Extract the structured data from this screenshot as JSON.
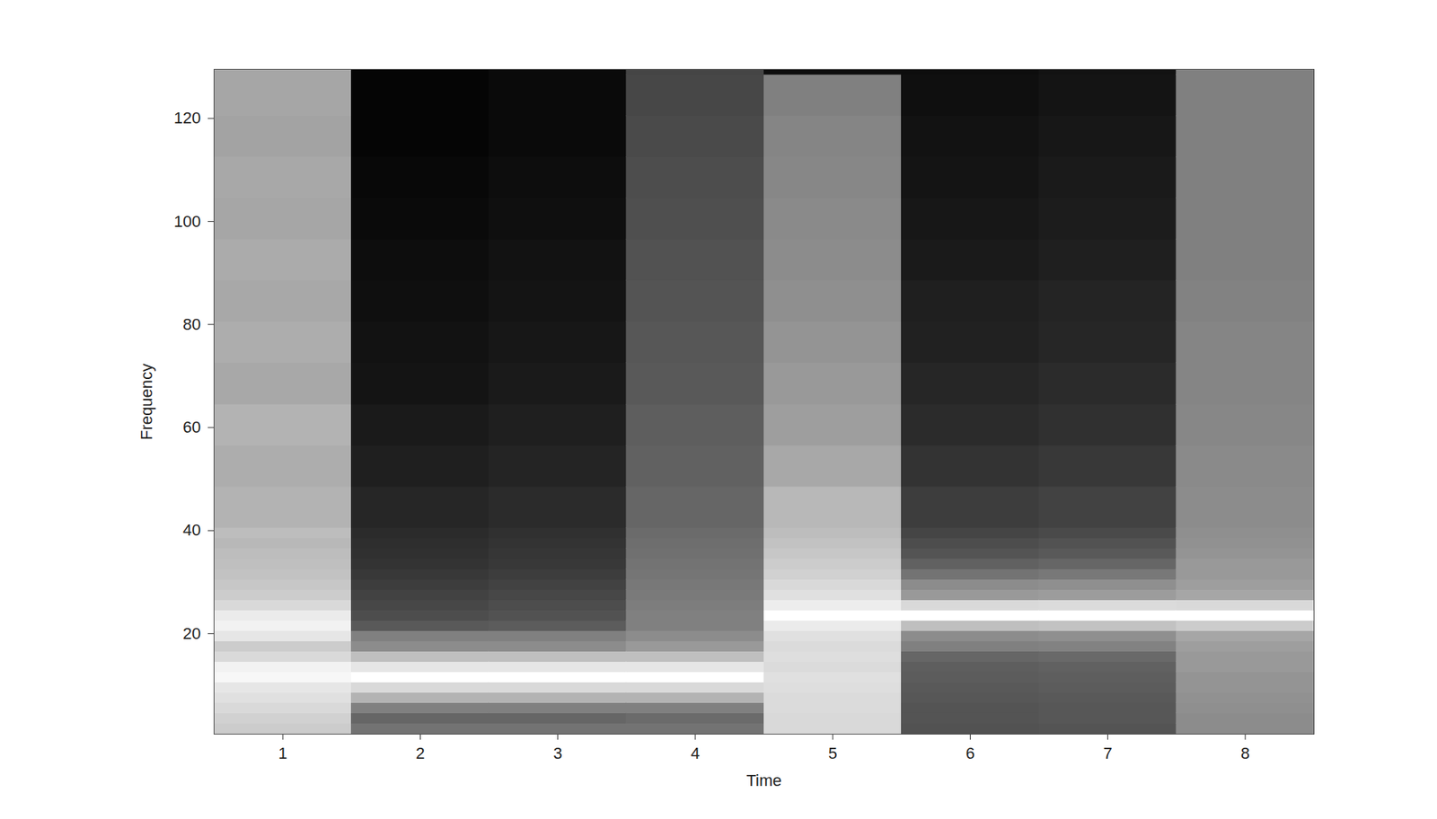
{
  "chart_data": {
    "type": "heatmap",
    "xlabel": "Time",
    "ylabel": "Frequency",
    "x": [
      1,
      2,
      3,
      4,
      5,
      6,
      7,
      8
    ],
    "frequency_edges": [
      0.5,
      2.5,
      4.5,
      6.5,
      8.5,
      10.5,
      12.5,
      14.5,
      16.5,
      18.5,
      20.5,
      22.5,
      24.5,
      26.5,
      28.5,
      30.5,
      32.5,
      34.5,
      36.5,
      38.5,
      40.5,
      48.5,
      56.5,
      64.5,
      72.5,
      80.5,
      88.5,
      96.5,
      104.5,
      112.5,
      120.5,
      128.5,
      129.5
    ],
    "values": [
      [
        0.8,
        0.82,
        0.85,
        0.88,
        0.9,
        0.97,
        0.95,
        0.85,
        0.8,
        0.9,
        0.95,
        0.92,
        0.85,
        0.8,
        0.78,
        0.76,
        0.75,
        0.74,
        0.72,
        0.74,
        0.7,
        0.68,
        0.7,
        0.66,
        0.68,
        0.66,
        0.67,
        0.65,
        0.66,
        0.64,
        0.65,
        0.65
      ],
      [
        0.45,
        0.4,
        0.5,
        0.7,
        0.85,
        1.0,
        0.9,
        0.75,
        0.55,
        0.5,
        0.35,
        0.3,
        0.28,
        0.26,
        0.24,
        0.22,
        0.2,
        0.19,
        0.18,
        0.17,
        0.15,
        0.12,
        0.1,
        0.08,
        0.07,
        0.06,
        0.05,
        0.04,
        0.03,
        0.02,
        0.02,
        0.02
      ],
      [
        0.45,
        0.4,
        0.5,
        0.7,
        0.85,
        1.0,
        0.9,
        0.75,
        0.55,
        0.5,
        0.36,
        0.32,
        0.3,
        0.28,
        0.26,
        0.24,
        0.22,
        0.21,
        0.2,
        0.19,
        0.17,
        0.14,
        0.12,
        0.1,
        0.09,
        0.08,
        0.07,
        0.06,
        0.05,
        0.04,
        0.04,
        0.04
      ],
      [
        0.45,
        0.42,
        0.5,
        0.7,
        0.85,
        1.0,
        0.9,
        0.75,
        0.6,
        0.55,
        0.5,
        0.5,
        0.49,
        0.48,
        0.47,
        0.46,
        0.45,
        0.44,
        0.43,
        0.42,
        0.4,
        0.38,
        0.37,
        0.35,
        0.34,
        0.33,
        0.32,
        0.31,
        0.3,
        0.29,
        0.28,
        0.27
      ],
      [
        0.85,
        0.85,
        0.86,
        0.86,
        0.87,
        0.88,
        0.86,
        0.87,
        0.86,
        0.88,
        0.92,
        1.0,
        0.93,
        0.88,
        0.85,
        0.82,
        0.8,
        0.78,
        0.76,
        0.74,
        0.72,
        0.66,
        0.62,
        0.6,
        0.58,
        0.56,
        0.55,
        0.54,
        0.53,
        0.52,
        0.5,
        0.05
      ],
      [
        0.32,
        0.33,
        0.33,
        0.34,
        0.35,
        0.36,
        0.37,
        0.4,
        0.5,
        0.55,
        0.75,
        1.0,
        0.85,
        0.6,
        0.55,
        0.45,
        0.38,
        0.33,
        0.3,
        0.27,
        0.24,
        0.2,
        0.17,
        0.15,
        0.13,
        0.12,
        0.1,
        0.09,
        0.08,
        0.07,
        0.06,
        0.05
      ],
      [
        0.33,
        0.34,
        0.34,
        0.35,
        0.36,
        0.37,
        0.38,
        0.41,
        0.51,
        0.56,
        0.76,
        1.0,
        0.86,
        0.61,
        0.56,
        0.47,
        0.4,
        0.35,
        0.32,
        0.29,
        0.26,
        0.22,
        0.19,
        0.17,
        0.15,
        0.14,
        0.12,
        0.11,
        0.1,
        0.09,
        0.08,
        0.07
      ],
      [
        0.55,
        0.55,
        0.56,
        0.57,
        0.58,
        0.58,
        0.6,
        0.6,
        0.62,
        0.65,
        0.8,
        1.0,
        0.85,
        0.65,
        0.62,
        0.6,
        0.6,
        0.58,
        0.57,
        0.56,
        0.55,
        0.54,
        0.53,
        0.52,
        0.52,
        0.51,
        0.5,
        0.5,
        0.5,
        0.5,
        0.5,
        0.5
      ]
    ],
    "xlim": [
      0.5,
      8.5
    ],
    "ylim": [
      0.5,
      129.5
    ],
    "xticks": [
      1,
      2,
      3,
      4,
      5,
      6,
      7,
      8
    ],
    "yticks": [
      20,
      40,
      60,
      80,
      100,
      120
    ],
    "clim": [
      0,
      1
    ]
  }
}
